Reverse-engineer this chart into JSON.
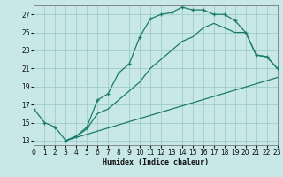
{
  "xlabel": "Humidex (Indice chaleur)",
  "bg_color": "#c8e8e8",
  "grid_color": "#a0cccc",
  "line_color": "#1a7a6a",
  "xlim": [
    0,
    23
  ],
  "ylim": [
    12.5,
    28.0
  ],
  "xticks": [
    0,
    1,
    2,
    3,
    4,
    5,
    6,
    7,
    8,
    9,
    10,
    11,
    12,
    13,
    14,
    15,
    16,
    17,
    18,
    19,
    20,
    21,
    22,
    23
  ],
  "yticks": [
    13,
    15,
    17,
    19,
    21,
    23,
    25,
    27
  ],
  "curve_main_x": [
    0,
    1,
    2,
    3,
    4,
    5,
    6,
    7,
    8,
    9,
    10,
    11,
    12,
    13,
    14,
    15,
    16,
    17,
    18,
    19,
    20,
    21,
    22,
    23
  ],
  "curve_main_y": [
    16.5,
    15.0,
    14.5,
    13.0,
    13.5,
    14.5,
    17.5,
    18.2,
    20.5,
    21.5,
    24.5,
    26.5,
    27.0,
    27.2,
    27.8,
    27.5,
    27.5,
    27.0,
    27.0,
    26.3,
    25.0,
    22.5,
    22.3,
    21.0
  ],
  "curve2_x": [
    3,
    4,
    5,
    6,
    7,
    8,
    9,
    10,
    11,
    12,
    13,
    14,
    15,
    16,
    17,
    18,
    19,
    20,
    21,
    22,
    23
  ],
  "curve2_y": [
    13.0,
    13.5,
    14.3,
    16.0,
    16.5,
    17.5,
    18.5,
    19.5,
    21.0,
    22.0,
    23.0,
    24.0,
    24.5,
    25.5,
    26.0,
    25.5,
    25.0,
    25.0,
    22.5,
    22.3,
    21.0
  ],
  "curve3_x": [
    3,
    23
  ],
  "curve3_y": [
    13.0,
    20.0
  ]
}
